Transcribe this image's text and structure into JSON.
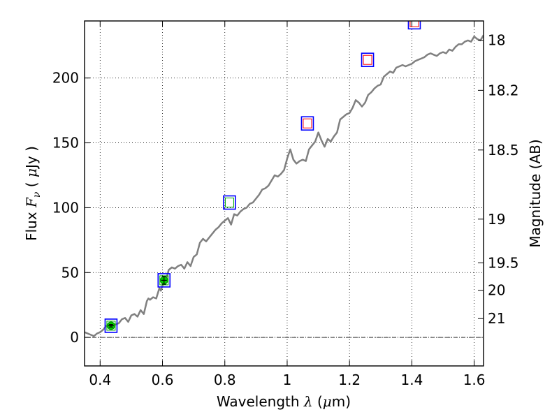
{
  "chart_data": {
    "type": "line",
    "xlabel_prefix": "Wavelength",
    "xlabel_symbol": "λ",
    "xlabel_unit_open": " (",
    "xlabel_unit_symbol": "μ",
    "xlabel_unit_rest": "m)",
    "ylabel_prefix": "Flux",
    "ylabel_symbol_base": "F",
    "ylabel_symbol_sub": "ν",
    "ylabel_unit_open": "(",
    "ylabel_unit_symbol": "μ",
    "ylabel_unit_rest": "Jy )",
    "y2label": "Magnitude (AB)",
    "xlim": [
      0.35,
      1.63
    ],
    "ylim": [
      -22,
      244
    ],
    "grid": true,
    "x_ticks": [
      0.4,
      0.6,
      0.8,
      1.0,
      1.2,
      1.4,
      1.6
    ],
    "x_tick_labels": [
      "0.4",
      "0.6",
      "0.8",
      "1",
      "1.2",
      "1.4",
      "1.6"
    ],
    "y_ticks": [
      0,
      50,
      100,
      150,
      200
    ],
    "y_tick_labels": [
      "0",
      "50",
      "100",
      "150",
      "200"
    ],
    "y2_tick_labels": [
      {
        "label": "18",
        "flux": 229.1
      },
      {
        "label": "18.2",
        "flux": 190.5
      },
      {
        "label": "18.5",
        "flux": 144.5
      },
      {
        "label": "19",
        "flux": 91.2
      },
      {
        "label": "19.5",
        "flux": 57.5
      },
      {
        "label": "20",
        "flux": 36.3
      },
      {
        "label": "21",
        "flux": 14.5
      }
    ],
    "zero_line": 0,
    "spectrum": {
      "color": "#808080",
      "x": [
        0.35,
        0.37,
        0.38,
        0.39,
        0.4,
        0.41,
        0.42,
        0.43,
        0.44,
        0.45,
        0.46,
        0.47,
        0.48,
        0.49,
        0.5,
        0.51,
        0.52,
        0.53,
        0.54,
        0.55,
        0.555,
        0.56,
        0.57,
        0.58,
        0.59,
        0.595,
        0.6,
        0.61,
        0.62,
        0.63,
        0.64,
        0.65,
        0.66,
        0.67,
        0.68,
        0.69,
        0.7,
        0.71,
        0.72,
        0.73,
        0.74,
        0.75,
        0.76,
        0.77,
        0.78,
        0.79,
        0.8,
        0.81,
        0.82,
        0.83,
        0.84,
        0.85,
        0.86,
        0.87,
        0.88,
        0.89,
        0.9,
        0.91,
        0.92,
        0.93,
        0.94,
        0.95,
        0.96,
        0.97,
        0.98,
        0.99,
        1.0,
        1.01,
        1.02,
        1.03,
        1.04,
        1.05,
        1.06,
        1.07,
        1.08,
        1.09,
        1.1,
        1.11,
        1.12,
        1.13,
        1.14,
        1.15,
        1.16,
        1.17,
        1.18,
        1.19,
        1.2,
        1.21,
        1.22,
        1.23,
        1.24,
        1.25,
        1.26,
        1.27,
        1.28,
        1.29,
        1.3,
        1.31,
        1.32,
        1.33,
        1.34,
        1.35,
        1.36,
        1.37,
        1.38,
        1.39,
        1.4,
        1.41,
        1.42,
        1.43,
        1.44,
        1.45,
        1.46,
        1.47,
        1.48,
        1.49,
        1.5,
        1.51,
        1.52,
        1.53,
        1.54,
        1.55,
        1.56,
        1.57,
        1.58,
        1.59,
        1.6,
        1.61,
        1.62,
        1.63
      ],
      "y": [
        4,
        2,
        1,
        3,
        4,
        6,
        9,
        7,
        8,
        10,
        11,
        14,
        15,
        12,
        17,
        18,
        16,
        21,
        18,
        28,
        30,
        29,
        31,
        30,
        38,
        36,
        40,
        43,
        52,
        54,
        53,
        55,
        56,
        53,
        58,
        55,
        62,
        64,
        73,
        76,
        74,
        77,
        80,
        83,
        85,
        88,
        90,
        92,
        87,
        95,
        94,
        97,
        99,
        100,
        103,
        104,
        107,
        110,
        114,
        115,
        117,
        121,
        125,
        124,
        126,
        129,
        138,
        145,
        137,
        134,
        136,
        137,
        136,
        145,
        148,
        151,
        158,
        152,
        147,
        153,
        151,
        155,
        158,
        168,
        170,
        172,
        173,
        177,
        183,
        181,
        178,
        181,
        187,
        189,
        192,
        194,
        195,
        201,
        203,
        205,
        204,
        208,
        209,
        210,
        209,
        210,
        211,
        213,
        214,
        215,
        216,
        218,
        219,
        218,
        217,
        219,
        220,
        219,
        222,
        221,
        224,
        226,
        226,
        228,
        229,
        228,
        232,
        230,
        229,
        233
      ]
    },
    "photometry_squares": [
      {
        "x": 0.435,
        "y": 9,
        "outer": "#0000ff",
        "inner": "#00aa00"
      },
      {
        "x": 0.605,
        "y": 44,
        "outer": "#0000ff",
        "inner": "#00aa00"
      },
      {
        "x": 0.815,
        "y": 104,
        "outer": "#0000ff",
        "inner": "#00aa00"
      },
      {
        "x": 1.065,
        "y": 165,
        "outer": "#0000ff",
        "inner": "#ff0000"
      },
      {
        "x": 1.258,
        "y": 214,
        "outer": "#0000ff",
        "inner": "#ff0000"
      },
      {
        "x": 1.408,
        "y": 243,
        "outer": "#0000ff",
        "inner": "#ff0000"
      }
    ],
    "measured_points": [
      {
        "x": 0.435,
        "y": 9,
        "err": 1,
        "color": "#00cc00"
      },
      {
        "x": 0.605,
        "y": 44,
        "err": 3,
        "color": "#00cc00"
      }
    ]
  }
}
